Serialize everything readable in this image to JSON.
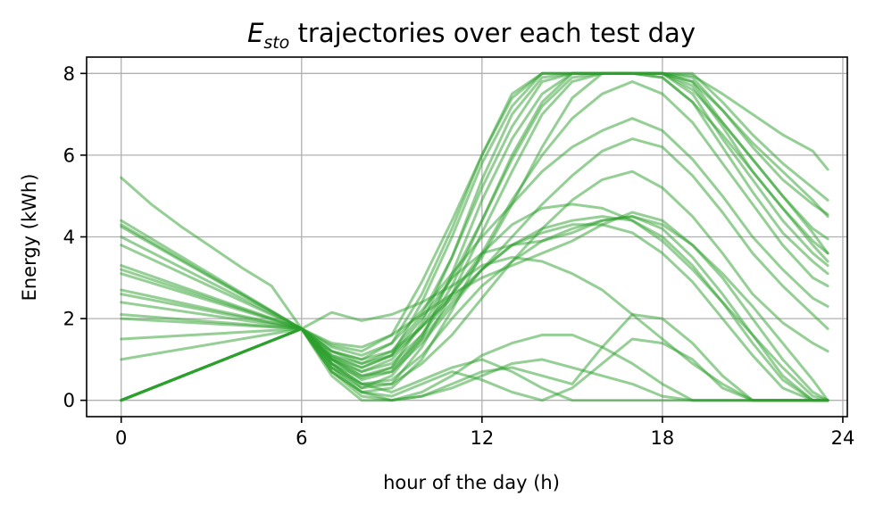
{
  "chart_data": {
    "type": "line",
    "title": "E_sto trajectories over each test day",
    "title_parts": {
      "symbol": "E",
      "subscript": "sto",
      "rest": " trajectories over each test day"
    },
    "xlabel": "hour of the day (h)",
    "ylabel": "Energy (kWh)",
    "xlim": [
      -1.15,
      24.15
    ],
    "ylim": [
      -0.4,
      8.4
    ],
    "xticks": [
      0,
      6,
      12,
      18,
      24
    ],
    "yticks": [
      0,
      2,
      4,
      6,
      8
    ],
    "grid": true,
    "legend": "none",
    "series_color": "#2ca02c",
    "series_opacity": 0.5,
    "shared_waypoint": {
      "x": 6,
      "y": 1.75
    },
    "series": [
      {
        "start": 5.45,
        "x": [
          0,
          1,
          2,
          3,
          4,
          5,
          6,
          7,
          8,
          9,
          10,
          11,
          12,
          13,
          14,
          15,
          16,
          17,
          18,
          19,
          20,
          21,
          22,
          23,
          23.5
        ],
        "values": [
          5.45,
          4.8,
          4.25,
          3.75,
          3.25,
          2.8,
          1.75,
          1.35,
          1.2,
          1.6,
          2.9,
          4.4,
          6.0,
          7.4,
          8.0,
          8.0,
          8.0,
          8.0,
          8.0,
          7.95,
          7.5,
          7.0,
          6.5,
          6.1,
          5.65
        ]
      },
      {
        "start": 4.4,
        "x": [
          0,
          6,
          7,
          8,
          9,
          10,
          11,
          12,
          13,
          14,
          15,
          16,
          17,
          18,
          19,
          20,
          21,
          22,
          23,
          23.5
        ],
        "values": [
          4.4,
          1.75,
          1.05,
          0.8,
          1.1,
          2.4,
          4.0,
          5.8,
          7.2,
          8.0,
          8.0,
          8.0,
          8.0,
          8.0,
          8.0,
          7.3,
          6.5,
          5.8,
          5.2,
          4.9
        ]
      },
      {
        "start": 4.3,
        "x": [
          0,
          6,
          7,
          8,
          9,
          10,
          11,
          12,
          13,
          14,
          15,
          16,
          17,
          18,
          19,
          20,
          21,
          22,
          23,
          23.5
        ],
        "values": [
          4.3,
          1.75,
          0.9,
          0.55,
          0.8,
          1.9,
          3.5,
          5.2,
          6.7,
          7.8,
          8.0,
          8.0,
          8.0,
          8.0,
          7.9,
          7.1,
          6.2,
          5.4,
          4.8,
          4.55
        ]
      },
      {
        "start": 4.25,
        "x": [
          0,
          6,
          7,
          8,
          9,
          10,
          11,
          12,
          13,
          14,
          15,
          16,
          17,
          18,
          19,
          20,
          21,
          22,
          23,
          23.5
        ],
        "values": [
          4.25,
          1.75,
          1.2,
          1.0,
          1.4,
          2.6,
          4.2,
          6.0,
          7.5,
          8.0,
          8.0,
          8.0,
          8.0,
          8.0,
          7.8,
          6.8,
          5.9,
          5.0,
          4.2,
          3.95
        ]
      },
      {
        "start": 4.0,
        "x": [
          0,
          6,
          7,
          8,
          9,
          10,
          11,
          12,
          13,
          14,
          15,
          16,
          17,
          18,
          19,
          20,
          21,
          22,
          23,
          23.5
        ],
        "values": [
          4.0,
          1.75,
          0.8,
          0.3,
          0.6,
          1.5,
          3.1,
          4.9,
          6.4,
          7.5,
          8.0,
          8.0,
          8.0,
          8.0,
          7.7,
          6.7,
          5.6,
          4.7,
          3.9,
          3.6
        ]
      },
      {
        "start": 3.8,
        "x": [
          0,
          6,
          7,
          8,
          9,
          10,
          11,
          12,
          13,
          14,
          15,
          16,
          17,
          18,
          19,
          20,
          21,
          22,
          23,
          23.5
        ],
        "values": [
          3.8,
          1.75,
          1.0,
          0.7,
          1.0,
          1.8,
          3.0,
          4.4,
          5.9,
          7.2,
          7.9,
          8.0,
          8.0,
          8.0,
          7.5,
          6.4,
          5.4,
          4.4,
          3.6,
          3.3
        ]
      },
      {
        "start": 3.3,
        "x": [
          0,
          6,
          7,
          8,
          9,
          10,
          11,
          12,
          13,
          14,
          15,
          16,
          17,
          18,
          19,
          20,
          21,
          22,
          23,
          23.5
        ],
        "values": [
          3.3,
          1.75,
          1.1,
          0.9,
          1.1,
          1.8,
          2.6,
          3.5,
          4.8,
          6.2,
          7.4,
          8.0,
          8.0,
          7.9,
          7.3,
          6.2,
          5.1,
          4.1,
          3.4,
          3.1
        ]
      },
      {
        "start": 3.2,
        "x": [
          0,
          6,
          7,
          8,
          9,
          10,
          11,
          12,
          13,
          14,
          15,
          16,
          17,
          18,
          19,
          20,
          21,
          22,
          23,
          23.5
        ],
        "values": [
          3.2,
          1.75,
          0.7,
          0.2,
          0.3,
          1.0,
          2.2,
          3.6,
          4.9,
          6.0,
          6.9,
          7.5,
          7.8,
          7.5,
          6.8,
          5.8,
          4.8,
          3.8,
          3.0,
          2.8
        ]
      },
      {
        "start": 3.1,
        "x": [
          0,
          6,
          7,
          8,
          9,
          10,
          11,
          12,
          13,
          14,
          15,
          16,
          17,
          18,
          19,
          20,
          21,
          22,
          23,
          23.5
        ],
        "values": [
          3.1,
          1.75,
          1.3,
          1.1,
          1.4,
          2.2,
          3.1,
          4.0,
          4.8,
          5.6,
          6.2,
          6.6,
          6.9,
          6.6,
          5.9,
          5.0,
          4.0,
          3.2,
          2.5,
          2.3
        ]
      },
      {
        "start": 2.7,
        "x": [
          0,
          6,
          7,
          8,
          9,
          10,
          11,
          12,
          13,
          14,
          15,
          16,
          17,
          18,
          19,
          20,
          21,
          22,
          23,
          23.5
        ],
        "values": [
          2.7,
          1.75,
          1.0,
          0.6,
          0.7,
          1.4,
          2.3,
          3.2,
          4.0,
          4.8,
          5.5,
          6.1,
          6.4,
          6.2,
          5.5,
          4.6,
          3.6,
          2.8,
          2.1,
          1.75
        ]
      },
      {
        "start": 2.6,
        "x": [
          0,
          6,
          7,
          8,
          9,
          10,
          11,
          12,
          13,
          14,
          15,
          16,
          17,
          18,
          19,
          20,
          21,
          22,
          23,
          23.5
        ],
        "values": [
          2.6,
          1.75,
          0.8,
          0.4,
          0.4,
          0.9,
          1.6,
          2.5,
          3.4,
          4.2,
          4.9,
          5.4,
          5.6,
          5.2,
          4.5,
          3.6,
          2.6,
          1.9,
          1.4,
          1.2
        ]
      },
      {
        "start": 2.4,
        "x": [
          0,
          6,
          7,
          8,
          9,
          10,
          11,
          12,
          13,
          14,
          15,
          16,
          17,
          18,
          19,
          20,
          21,
          22,
          23,
          23.5
        ],
        "values": [
          2.4,
          1.75,
          1.2,
          1.0,
          1.2,
          1.8,
          2.5,
          3.2,
          3.8,
          4.2,
          4.4,
          4.5,
          4.4,
          4.0,
          3.3,
          2.4,
          1.4,
          0.5,
          0.0,
          0.0
        ]
      },
      {
        "start": 2.1,
        "x": [
          0,
          6,
          7,
          8,
          9,
          10,
          11,
          12,
          13,
          14,
          15,
          16,
          17,
          18,
          19,
          20,
          21,
          22,
          23,
          23.5
        ],
        "values": [
          2.1,
          1.75,
          0.9,
          0.4,
          0.5,
          1.1,
          2.0,
          2.8,
          3.4,
          3.9,
          4.2,
          4.4,
          4.5,
          4.2,
          3.5,
          2.6,
          1.6,
          0.6,
          0.0,
          0.0
        ]
      },
      {
        "start": 2.0,
        "x": [
          0,
          6,
          7,
          8,
          9,
          10,
          11,
          12,
          13,
          14,
          15,
          16,
          17,
          18,
          19,
          20,
          21,
          22,
          23,
          23.5
        ],
        "values": [
          2.0,
          1.75,
          1.4,
          1.3,
          1.6,
          2.1,
          2.6,
          3.0,
          3.3,
          3.6,
          3.9,
          4.3,
          4.6,
          4.4,
          3.8,
          3.0,
          2.0,
          1.0,
          0.2,
          0.0
        ]
      },
      {
        "start": 1.5,
        "x": [
          0,
          6,
          7,
          8,
          9,
          10,
          11,
          12,
          13,
          14,
          15,
          16,
          17,
          18,
          19,
          20,
          21,
          22,
          23,
          23.5
        ],
        "values": [
          1.5,
          1.75,
          1.0,
          0.6,
          0.8,
          1.5,
          2.4,
          3.2,
          3.8,
          4.1,
          4.3,
          4.3,
          4.1,
          3.6,
          2.9,
          2.0,
          1.1,
          0.3,
          0.0,
          0.0
        ]
      },
      {
        "start": 1.0,
        "x": [
          0,
          6,
          7,
          8,
          9,
          10,
          11,
          12,
          13,
          14,
          15,
          16,
          17,
          18,
          19,
          20,
          21,
          22,
          23,
          23.5
        ],
        "values": [
          1.0,
          1.75,
          2.15,
          1.95,
          2.1,
          2.4,
          2.8,
          3.3,
          3.5,
          3.4,
          3.1,
          2.7,
          2.1,
          1.5,
          0.9,
          0.4,
          0.0,
          0.0,
          0.0,
          0.0
        ]
      },
      {
        "start": 0,
        "x": [
          0,
          6,
          7,
          8,
          9,
          10,
          11,
          12,
          13,
          14,
          15,
          16,
          17,
          18,
          19,
          20,
          21,
          22,
          23,
          23.5
        ],
        "values": [
          0.0,
          1.75,
          1.0,
          0.5,
          0.7,
          1.6,
          2.8,
          4.4,
          6.0,
          7.3,
          8.0,
          8.0,
          8.0,
          8.0,
          7.8,
          7.1,
          6.3,
          5.6,
          4.9,
          4.5
        ]
      },
      {
        "start": 0,
        "x": [
          0,
          6,
          7,
          8,
          9,
          10,
          11,
          12,
          13,
          14,
          15,
          16,
          17,
          18,
          19,
          20,
          21,
          22,
          23,
          23.5
        ],
        "values": [
          0.0,
          1.75,
          0.9,
          0.3,
          0.4,
          1.3,
          2.6,
          4.1,
          5.6,
          7.0,
          7.8,
          8.0,
          8.0,
          8.0,
          7.6,
          6.8,
          5.9,
          5.0,
          4.1,
          3.6
        ]
      },
      {
        "start": 0,
        "x": [
          0,
          6,
          7,
          8,
          9,
          10,
          11,
          12,
          13,
          14,
          15,
          16,
          17,
          18,
          19,
          20,
          21,
          22,
          23,
          23.5
        ],
        "values": [
          0.0,
          1.75,
          1.1,
          0.8,
          1.1,
          2.0,
          3.0,
          3.6,
          3.8,
          3.9,
          4.1,
          4.4,
          4.5,
          4.3,
          3.8,
          3.1,
          2.3,
          1.4,
          0.5,
          0.0
        ]
      },
      {
        "start": 0,
        "x": [
          0,
          6,
          7,
          8,
          9,
          10,
          11,
          12,
          13,
          14,
          15,
          16,
          17,
          18,
          19,
          20,
          21,
          22,
          23,
          23.5
        ],
        "values": [
          0.0,
          1.75,
          0.7,
          0.1,
          0.0,
          0.2,
          0.6,
          1.1,
          1.4,
          1.6,
          1.6,
          1.3,
          0.9,
          0.4,
          0.0,
          0.0,
          0.0,
          0.0,
          0.0,
          0.0
        ]
      },
      {
        "start": 0,
        "x": [
          0,
          6,
          7,
          8,
          9,
          10,
          11,
          12,
          13,
          14,
          15,
          16,
          17,
          18,
          19,
          20,
          21,
          22,
          23,
          23.5
        ],
        "values": [
          0.0,
          1.75,
          0.6,
          0.0,
          0.0,
          0.1,
          0.3,
          0.6,
          0.9,
          1.0,
          0.8,
          0.6,
          0.4,
          0.1,
          0.0,
          0.0,
          0.0,
          0.0,
          0.0,
          0.0
        ]
      },
      {
        "start": 0,
        "x": [
          0,
          6,
          7,
          8,
          9,
          10,
          11,
          12,
          13,
          14,
          15,
          16,
          17,
          18,
          19,
          20,
          21,
          22,
          23,
          23.5
        ],
        "values": [
          0.0,
          1.75,
          0.8,
          0.2,
          0.0,
          0.1,
          0.4,
          0.7,
          0.8,
          0.6,
          0.4,
          1.3,
          2.1,
          2.0,
          1.4,
          0.6,
          0.0,
          0.0,
          0.0,
          0.0
        ]
      },
      {
        "start": 0,
        "x": [
          0,
          6,
          7,
          8,
          9,
          10,
          11,
          12,
          13,
          14,
          15,
          16,
          17,
          18,
          19,
          20,
          21,
          22,
          23,
          23.5
        ],
        "values": [
          0.0,
          1.75,
          0.9,
          0.4,
          0.2,
          0.5,
          0.8,
          1.0,
          0.7,
          0.3,
          0.0,
          0.0,
          0.0,
          0.0,
          0.0,
          0.0,
          0.0,
          0.0,
          0.0,
          0.0
        ]
      },
      {
        "start": 0,
        "x": [
          0,
          6,
          7,
          8,
          9,
          10,
          11,
          12,
          13,
          14,
          15,
          16,
          17,
          18,
          19,
          20,
          21,
          22,
          23,
          23.5
        ],
        "values": [
          0.0,
          1.75,
          0.7,
          0.2,
          0.1,
          0.4,
          0.7,
          0.5,
          0.2,
          0.0,
          0.3,
          0.9,
          1.5,
          1.4,
          1.0,
          0.3,
          0.0,
          0.0,
          0.0,
          0.0
        ]
      },
      {
        "start": 0,
        "x": [
          0,
          6,
          7,
          8,
          9,
          10,
          11,
          12,
          13,
          14,
          15,
          16,
          17,
          18,
          19,
          20,
          21,
          22,
          23,
          23.5
        ],
        "values": [
          0.0,
          1.75,
          1.2,
          0.9,
          1.2,
          2.1,
          3.5,
          5.4,
          7.0,
          7.9,
          8.0,
          8.0,
          8.0,
          7.9,
          7.3,
          6.5,
          5.6,
          4.7,
          3.8,
          3.4
        ]
      },
      {
        "start": 0,
        "x": [
          0,
          6,
          7,
          8,
          9,
          10,
          11,
          12,
          13,
          14,
          15,
          16,
          17,
          18,
          19,
          20,
          21,
          22,
          23,
          23.5
        ],
        "values": [
          0.0,
          1.75,
          1.05,
          0.7,
          0.9,
          1.6,
          2.6,
          3.6,
          4.3,
          4.7,
          4.8,
          4.7,
          4.4,
          3.9,
          3.2,
          2.4,
          1.6,
          0.8,
          0.1,
          0.0
        ]
      }
    ]
  }
}
